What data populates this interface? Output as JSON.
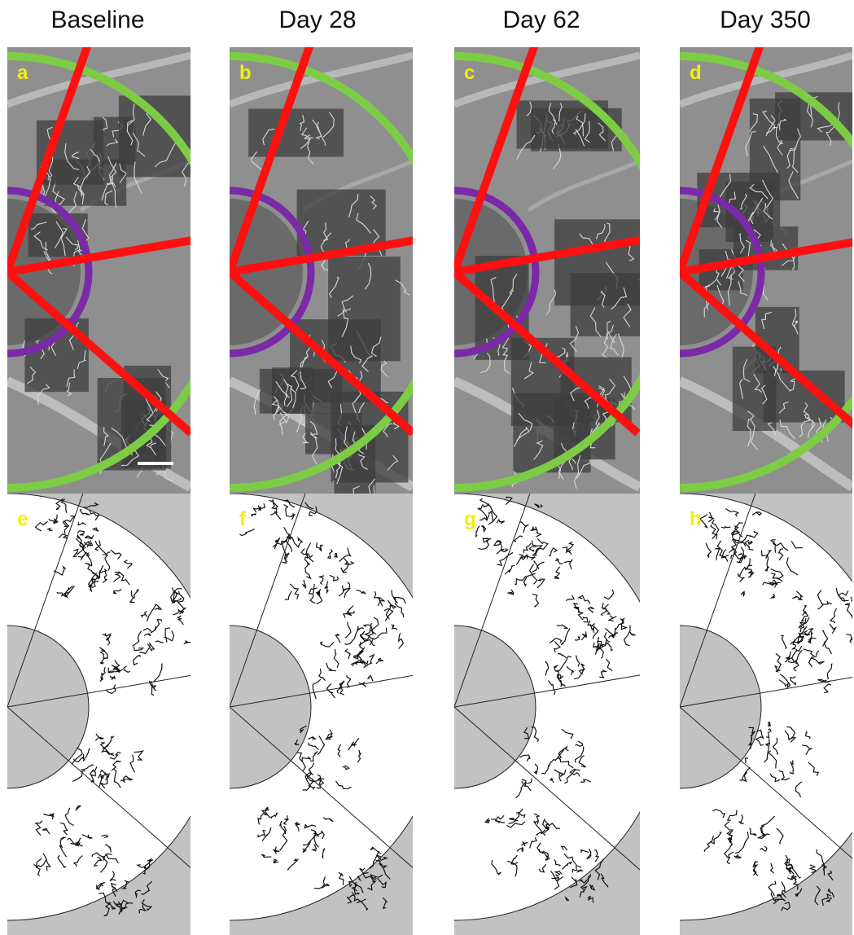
{
  "columns": [
    {
      "title": "Baseline",
      "top_label": "a",
      "bottom_label": "e"
    },
    {
      "title": "Day 28",
      "top_label": "b",
      "bottom_label": "f"
    },
    {
      "title": "Day 62",
      "top_label": "c",
      "bottom_label": "g"
    },
    {
      "title": "Day 350",
      "top_label": "d",
      "bottom_label": "h"
    }
  ],
  "colors": {
    "outer_ring": "#7ccc45",
    "inner_ring": "#7a2aa8",
    "sector_lines": "#ff1010",
    "panel_label": "#f5f000",
    "mask_gray": "#c2c2c2"
  }
}
